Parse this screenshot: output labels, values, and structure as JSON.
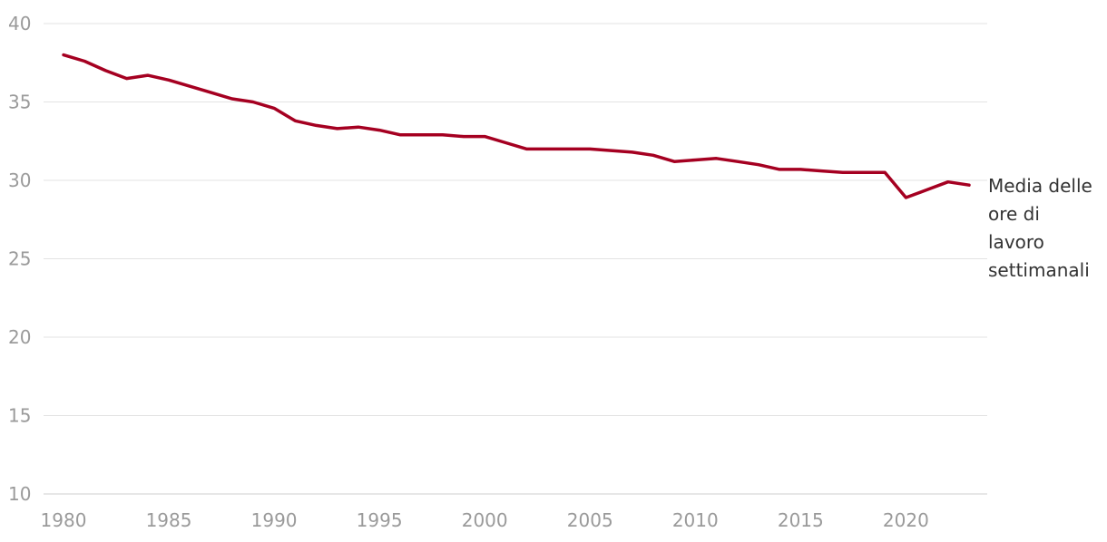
{
  "chart_data": {
    "type": "line",
    "title": "",
    "xlabel": "",
    "ylabel": "",
    "xlim": [
      1980,
      2023
    ],
    "ylim": [
      10,
      40
    ],
    "x_ticks": [
      1980,
      1985,
      1990,
      1995,
      2000,
      2005,
      2010,
      2015,
      2020
    ],
    "y_ticks": [
      10,
      15,
      20,
      25,
      30,
      35,
      40
    ],
    "grid": true,
    "legend": "none",
    "series": [
      {
        "name": "Media delle ore di lavoro settimanali",
        "label_lines": [
          "Media delle",
          "ore di",
          "lavoro",
          "settimanali"
        ],
        "color": "#a50021",
        "x": [
          1980,
          1981,
          1982,
          1983,
          1984,
          1985,
          1986,
          1987,
          1988,
          1989,
          1990,
          1991,
          1992,
          1993,
          1994,
          1995,
          1996,
          1997,
          1998,
          1999,
          2000,
          2001,
          2002,
          2003,
          2004,
          2005,
          2006,
          2007,
          2008,
          2009,
          2010,
          2011,
          2012,
          2013,
          2014,
          2015,
          2016,
          2017,
          2018,
          2019,
          2020,
          2021,
          2022,
          2023
        ],
        "values": [
          38.0,
          37.6,
          37.0,
          36.5,
          36.7,
          36.4,
          36.0,
          35.6,
          35.2,
          35.0,
          34.6,
          33.8,
          33.5,
          33.3,
          33.4,
          33.2,
          32.9,
          32.9,
          32.9,
          32.8,
          32.8,
          32.4,
          32.0,
          32.0,
          32.0,
          32.0,
          31.9,
          31.8,
          31.6,
          31.2,
          31.3,
          31.4,
          31.2,
          31.0,
          30.7,
          30.7,
          30.6,
          30.5,
          30.5,
          30.5,
          28.9,
          29.4,
          29.9,
          29.7
        ]
      }
    ]
  }
}
